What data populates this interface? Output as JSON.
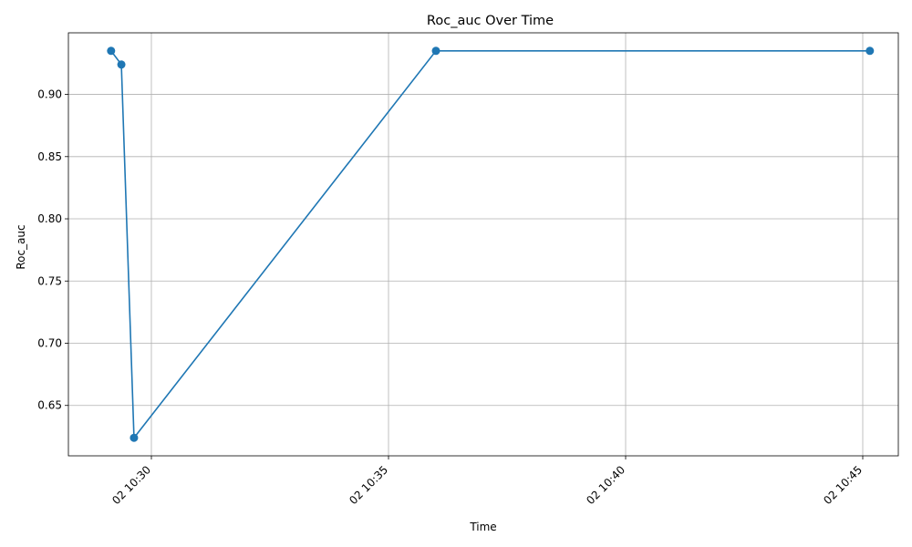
{
  "chart_data": {
    "type": "line",
    "title": "Roc_auc Over Time",
    "xlabel": "Time",
    "ylabel": "Roc_auc",
    "x": [
      "10:29:09",
      "10:29:22",
      "10:29:38",
      "10:36:00",
      "10:45:09"
    ],
    "series": [
      {
        "values": [
          0.935,
          0.924,
          0.624,
          0.935,
          0.935
        ]
      }
    ],
    "xlim": [
      "10:28:15",
      "10:45:45"
    ],
    "ylim": [
      0.6095,
      0.9495
    ],
    "xticks": [
      "10:30",
      "10:35",
      "10:40",
      "10:45"
    ],
    "xtick_labels": [
      "02 10:30",
      "02 10:35",
      "02 10:40",
      "02 10:45"
    ],
    "yticks": [
      0.65,
      0.7,
      0.75,
      0.8,
      0.85,
      0.9
    ],
    "ytick_labels": [
      "0.65",
      "0.70",
      "0.75",
      "0.80",
      "0.85",
      "0.90"
    ],
    "grid": true,
    "line_color": "#1f77b4",
    "grid_color": "#b0b0b0"
  }
}
